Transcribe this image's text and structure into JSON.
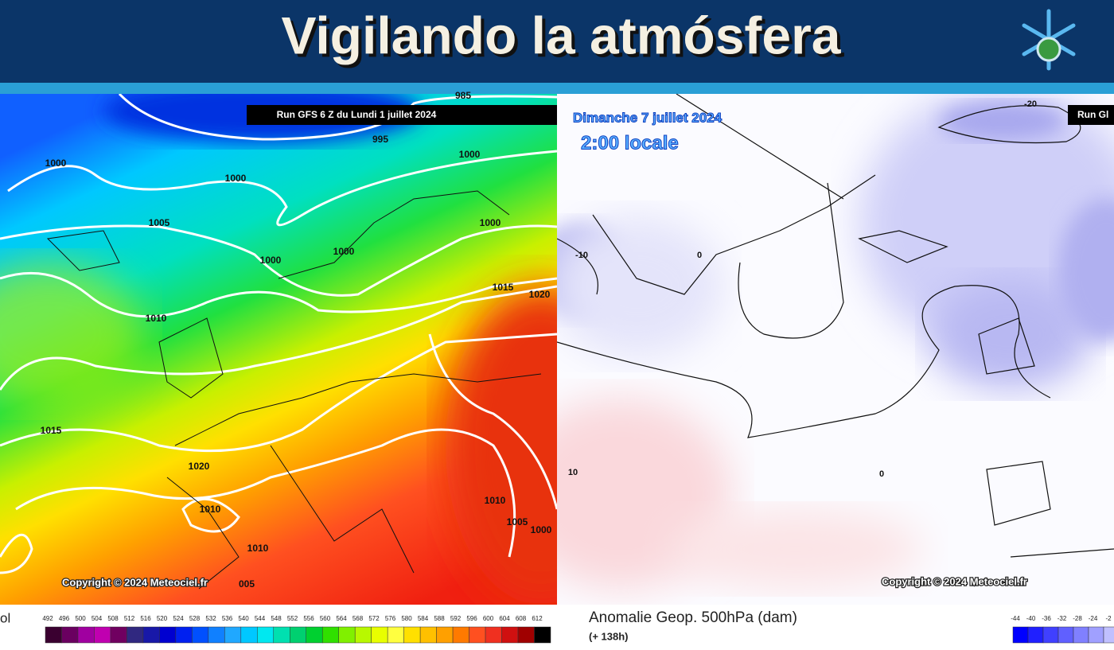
{
  "header": {
    "title": "Vigilando la atmósfera"
  },
  "left_map": {
    "run_label": "Run GFS 6 Z du Lundi 1 juillet 2024",
    "isobar_labels": [
      "985",
      "995",
      "1000",
      "1000",
      "1000",
      "1005",
      "1000",
      "1000",
      "1000",
      "1015",
      "1020",
      "1010",
      "1015",
      "1020",
      "1010",
      "1010",
      "1005",
      "1000",
      "1010",
      "005"
    ],
    "copyright": "Copyright © 2024 Meteociel.fr",
    "legend": {
      "title_fragment": "ol",
      "ticks": [
        492,
        496,
        500,
        504,
        508,
        512,
        516,
        520,
        524,
        528,
        532,
        536,
        540,
        544,
        548,
        552,
        556,
        560,
        564,
        568,
        572,
        576,
        580,
        584,
        588,
        592,
        596,
        600,
        604,
        608,
        612
      ]
    }
  },
  "right_map": {
    "date": "Dimanche 7 juillet 2024",
    "time": "2:00 locale",
    "run_label": "Run Gl",
    "contour_labels": [
      "-20",
      "-10",
      "0",
      "10",
      "0"
    ],
    "copyright": "Copyright © 2024 Meteociel.fr",
    "legend": {
      "title": "Anomalie Geop. 500hPa (dam)",
      "lead_time": "(+ 138h)",
      "ticks": [
        "-44",
        "-40",
        "-36",
        "-32",
        "-28",
        "-24",
        "-2"
      ]
    }
  }
}
